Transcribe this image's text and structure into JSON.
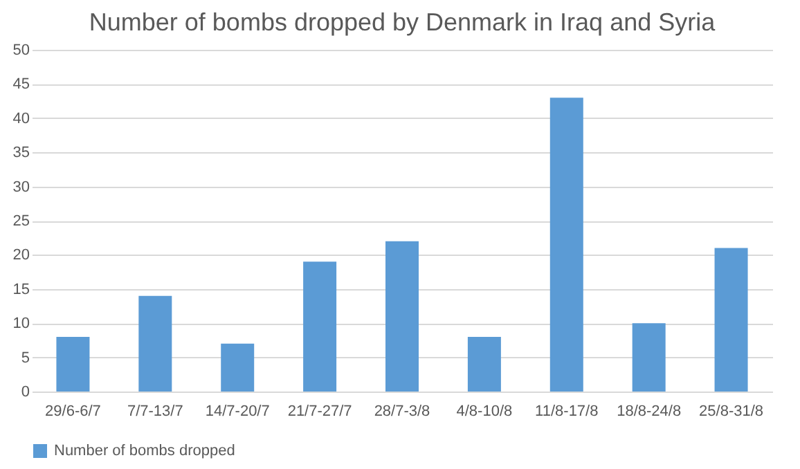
{
  "chart_data": {
    "type": "bar",
    "title": "Number of bombs dropped by Denmark in Iraq and Syria",
    "categories": [
      "29/6-6/7",
      "7/7-13/7",
      "14/7-20/7",
      "21/7-27/7",
      "28/7-3/8",
      "4/8-10/8",
      "11/8-17/8",
      "18/8-24/8",
      "25/8-31/8"
    ],
    "series": [
      {
        "name": "Number of bombs dropped",
        "color": "#5b9bd5",
        "values": [
          8,
          14,
          7,
          19,
          22,
          8,
          43,
          10,
          21
        ]
      }
    ],
    "ylim": [
      0,
      50
    ],
    "yticks": [
      0,
      5,
      10,
      15,
      20,
      25,
      30,
      35,
      40,
      45,
      50
    ],
    "grid": "y",
    "legend": "bottom"
  }
}
